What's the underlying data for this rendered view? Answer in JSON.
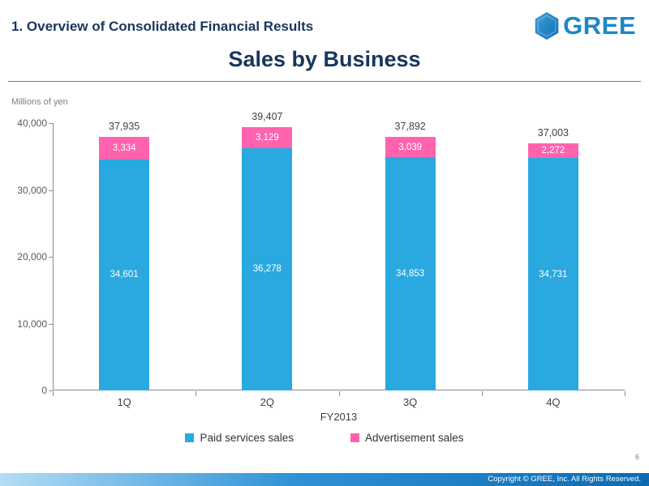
{
  "header": {
    "section_title": "1. Overview of Consolidated Financial Results",
    "logo_text": "GREE"
  },
  "slide": {
    "title": "Sales by Business",
    "units_label": "Millions of yen",
    "page_number": "6",
    "footer_copyright": "Copyright © GREE, Inc. All Rights Reserved."
  },
  "chart_data": {
    "type": "bar",
    "stacked": true,
    "title": "Sales by Business",
    "xlabel": "FY2013",
    "ylabel": "Millions of yen",
    "categories": [
      "1Q",
      "2Q",
      "3Q",
      "4Q"
    ],
    "series": [
      {
        "name": "Paid services sales",
        "color": "#29a9e0",
        "values": [
          34601,
          36278,
          34853,
          34731
        ]
      },
      {
        "name": "Advertisement sales",
        "color": "#ff63ae",
        "values": [
          3334,
          3129,
          3039,
          2272
        ]
      }
    ],
    "totals": [
      37935,
      39407,
      37892,
      37003
    ],
    "ylim": [
      0,
      40000
    ],
    "yticks": [
      0,
      10000,
      20000,
      30000,
      40000
    ],
    "ytick_labels": [
      "0",
      "10,000",
      "20,000",
      "30,000",
      "40,000"
    ],
    "grid": false,
    "legend_position": "bottom",
    "value_labels": "inside-white",
    "colors": {
      "title": "#17365d",
      "axis": "#8c8c8c",
      "total_label": "#404040",
      "logo_blue": "#1d87c9"
    }
  }
}
